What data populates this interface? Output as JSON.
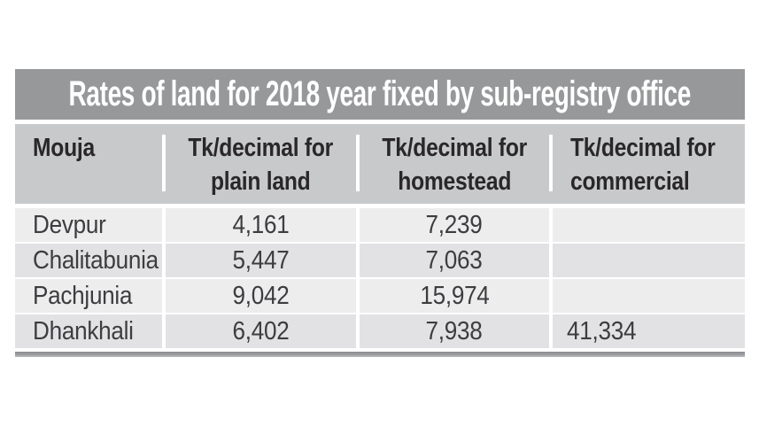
{
  "title": "Rates of land for 2018 year fixed by sub-registry office",
  "table": {
    "columns": [
      {
        "label": "Mouja"
      },
      {
        "line1": "Tk/decimal for",
        "line2": "plain land"
      },
      {
        "line1": "Tk/decimal for",
        "line2": "homestead"
      },
      {
        "line1": "Tk/decimal for",
        "line2": "commercial"
      }
    ],
    "rows": [
      {
        "cells": [
          "Devpur",
          "4,161",
          "7,239",
          ""
        ]
      },
      {
        "cells": [
          "Chalitabunia",
          "5,447",
          "7,063",
          ""
        ]
      },
      {
        "cells": [
          "Pachjunia",
          "9,042",
          "15,974",
          ""
        ]
      },
      {
        "cells": [
          "Dhankhali",
          "6,402",
          "7,938",
          "41,334"
        ]
      }
    ]
  },
  "chart_data": {
    "type": "table",
    "title": "Rates of land for 2018 year fixed by sub-registry office",
    "columns": [
      "Mouja",
      "Tk/decimal for plain land",
      "Tk/decimal for homestead",
      "Tk/decimal for commercial"
    ],
    "rows": [
      [
        "Devpur",
        4161,
        7239,
        null
      ],
      [
        "Chalitabunia",
        5447,
        7063,
        null
      ],
      [
        "Pachjunia",
        9042,
        15974,
        null
      ],
      [
        "Dhankhali",
        6402,
        7938,
        41334
      ]
    ]
  },
  "colors": {
    "title_bar_bg": "#97989a",
    "title_text": "#ffffff",
    "header_bg": "#c8c9cb",
    "header_text": "#29272a",
    "row_light_bg": "#ededee",
    "row_dark_bg": "#e2e2e4",
    "cell_text": "#3d3d40",
    "divider": "#9d9ea1",
    "page_bg": "#ffffff"
  }
}
